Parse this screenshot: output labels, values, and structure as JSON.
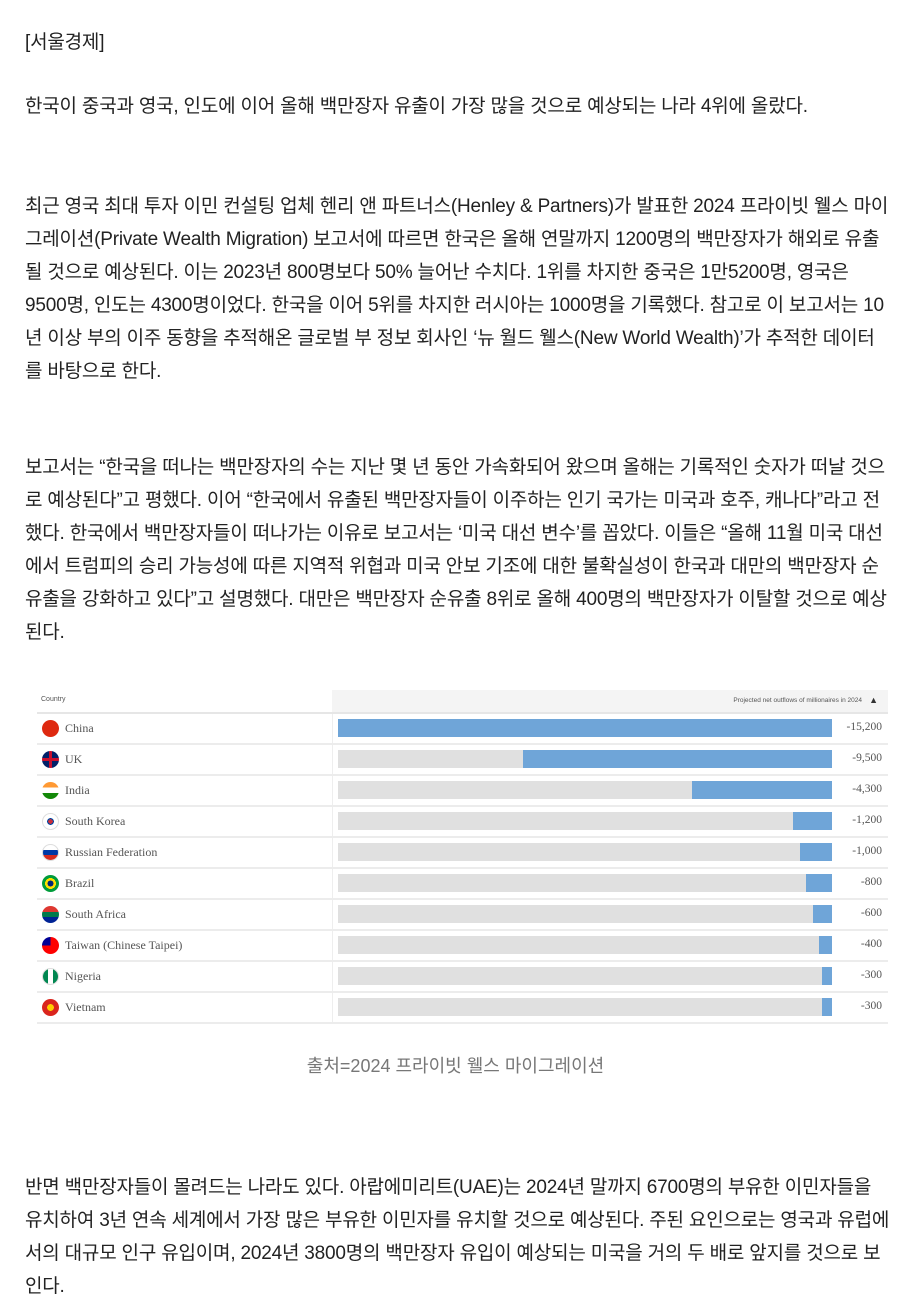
{
  "article": {
    "source": "[서울경제]",
    "paragraphs": [
      "한국이 중국과 영국, 인도에 이어 올해 백만장자 유출이 가장 많을 것으로 예상되는 나라 4위에 올랐다.",
      "최근 영국 최대 투자 이민 컨설팅 업체 헨리 앤 파트너스(Henley & Partners)가 발표한 2024 프라이빗 웰스 마이그레이션(Private Wealth Migration) 보고서에 따르면 한국은 올해 연말까지 1200명의 백만장자가 해외로 유출될 것으로 예상된다. 이는 2023년 800명보다 50% 늘어난 수치다. 1위를 차지한 중국은 1만5200명, 영국은 9500명, 인도는 4300명이었다. 한국을 이어 5위를 차지한 러시아는 1000명을 기록했다. 참고로 이 보고서는 10년 이상 부의 이주 동향을 추적해온 글로벌 부 정보 회사인 ‘뉴 월드 웰스(New World Wealth)’가 추적한 데이터를 바탕으로 한다.",
      "보고서는 “한국을 떠나는 백만장자의 수는 지난 몇 년 동안 가속화되어 왔으며 올해는 기록적인 숫자가 떠날 것으로 예상된다”고 평했다. 이어 “한국에서 유출된 백만장자들이 이주하는 인기 국가는 미국과 호주, 캐나다”라고 전했다. 한국에서 백만장자들이 떠나가는 이유로 보고서는 ‘미국 대선 변수’를 꼽았다. 이들은 “올해 11월 미국 대선에서 트럼피의 승리 가능성에 따른 지역적 위협과 미국 안보 기조에 대한 불확실성이 한국과 대만의 백만장자 순유출을 강화하고 있다”고 설명했다. 대만은 백만장자 순유출 8위로 올해 400명의 백만장자가 이탈할 것으로 예상된다."
    ],
    "caption": "출처=2024 프라이빗 웰스 마이그레이션",
    "closing_paragraph": "반면 백만장자들이 몰려드는 나라도 있다. 아랍에미리트(UAE)는 2024년 말까지 6700명의 부유한 이민자들을 유치하여 3년 연속 세계에서 가장 많은 부유한 이민자를 유치할 것으로 예상된다. 주된 요인으로는 영국과 유럽에서의 대규모 인구 유입이며, 2024년 3800명의 백만장자 유입이 예상되는 미국을 거의 두 배로 앞지를 것으로 보인다."
  },
  "chart_data": {
    "type": "bar",
    "orientation": "horizontal",
    "column_header": "Country",
    "value_header": "Projected net outflows of millionaires in 2024",
    "sort_icon": "triangle-up-icon",
    "categories": [
      "China",
      "UK",
      "India",
      "South Korea",
      "Russian Federation",
      "Brazil",
      "South Africa",
      "Taiwan (Chinese Taipei)",
      "Nigeria",
      "Vietnam"
    ],
    "values": [
      -15200,
      -9500,
      -4300,
      -1200,
      -1000,
      -800,
      -600,
      -400,
      -300,
      -300
    ],
    "labels": [
      "-15,200",
      "-9,500",
      "-4,300",
      "-1,200",
      "-1,000",
      "-800",
      "-600",
      "-400",
      "-300",
      "-300"
    ],
    "flags": [
      "china-flag",
      "uk-flag",
      "india-flag",
      "south-korea-flag",
      "russia-flag",
      "brazil-flag",
      "south-africa-flag",
      "taiwan-flag",
      "nigeria-flag",
      "vietnam-flag"
    ],
    "bar_color": "#6fa5d8",
    "track_color": "#e0e0e0"
  }
}
